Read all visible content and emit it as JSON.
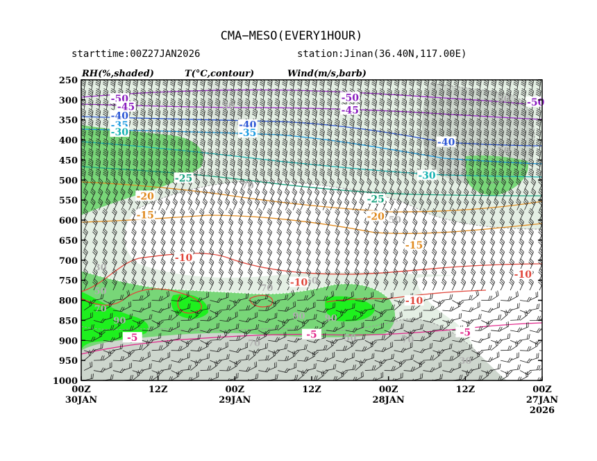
{
  "header": {
    "title": "CMA−MESO(EVERY1HOUR)",
    "start": "starttime:00Z27JAN2026",
    "station": "station:Jinan(36.40N,117.00E)"
  },
  "legend": {
    "rh": "RH(%,shaded)",
    "temp": "T(°C,contour)",
    "wind": "Wind(m/s,barb)"
  },
  "chart_data": {
    "type": "heatmap",
    "y_axis": {
      "ticks": [
        "250",
        "300",
        "350",
        "400",
        "450",
        "500",
        "550",
        "600",
        "650",
        "700",
        "750",
        "800",
        "850",
        "900",
        "950",
        "1000"
      ],
      "ylim": [
        250,
        1000
      ]
    },
    "x_axis": {
      "ticks": [
        {
          "top": "00Z",
          "bottom": "30JAN",
          "extra": ""
        },
        {
          "top": "12Z",
          "bottom": "",
          "extra": ""
        },
        {
          "top": "00Z",
          "bottom": "29JAN",
          "extra": ""
        },
        {
          "top": "12Z",
          "bottom": "",
          "extra": ""
        },
        {
          "top": "00Z",
          "bottom": "28JAN",
          "extra": ""
        },
        {
          "top": "12Z",
          "bottom": "",
          "extra": ""
        },
        {
          "top": "00Z",
          "bottom": "27JAN",
          "extra": "2026"
        }
      ]
    },
    "temperature_labels": [
      {
        "text": "-50",
        "x_hours": 66,
        "p": 297,
        "color": "#8a1dbf"
      },
      {
        "text": "-50",
        "x_hours": 30,
        "p": 294,
        "color": "#8a1dbf"
      },
      {
        "text": "-50",
        "x_hours": 1,
        "p": 305,
        "color": "#8a1dbf"
      },
      {
        "text": "-45",
        "x_hours": 65,
        "p": 317,
        "color": "#8a1dbf"
      },
      {
        "text": "-45",
        "x_hours": 30,
        "p": 325,
        "color": "#8a1dbf"
      },
      {
        "text": "-40",
        "x_hours": 66,
        "p": 339,
        "color": "#2a55d5"
      },
      {
        "text": "-40",
        "x_hours": 46,
        "p": 362,
        "color": "#2a55d5"
      },
      {
        "text": "-40",
        "x_hours": 15,
        "p": 405,
        "color": "#2a55d5"
      },
      {
        "text": "-35",
        "x_hours": 66,
        "p": 363,
        "color": "#1a9ae0"
      },
      {
        "text": "-35",
        "x_hours": 46,
        "p": 382,
        "color": "#1a9ae0"
      },
      {
        "text": "-30",
        "x_hours": 66,
        "p": 380,
        "color": "#16b2b2"
      },
      {
        "text": "-30",
        "x_hours": 18,
        "p": 488,
        "color": "#16b2b2"
      },
      {
        "text": "-25",
        "x_hours": 56,
        "p": 495,
        "color": "#17a17e"
      },
      {
        "text": "-25",
        "x_hours": 26,
        "p": 547,
        "color": "#17a17e"
      },
      {
        "text": "-20",
        "x_hours": 62,
        "p": 540,
        "color": "#e08a1e"
      },
      {
        "text": "-20",
        "x_hours": 26,
        "p": 590,
        "color": "#e08a1e"
      },
      {
        "text": "-15",
        "x_hours": 62,
        "p": 587,
        "color": "#e08a1e"
      },
      {
        "text": "-15",
        "x_hours": 20,
        "p": 662,
        "color": "#e08a1e"
      },
      {
        "text": "-10",
        "x_hours": 56,
        "p": 693,
        "color": "#e0453a"
      },
      {
        "text": "-10",
        "x_hours": 38,
        "p": 755,
        "color": "#e0453a"
      },
      {
        "text": "-10",
        "x_hours": 3,
        "p": 735,
        "color": "#e0453a"
      },
      {
        "text": "-10",
        "x_hours": 20,
        "p": 801,
        "color": "#e0453a"
      },
      {
        "text": "-5",
        "x_hours": 64,
        "p": 893,
        "color": "#e0258a"
      },
      {
        "text": "-5",
        "x_hours": 36,
        "p": 885,
        "color": "#e0258a"
      },
      {
        "text": "-5",
        "x_hours": 12,
        "p": 880,
        "color": "#e0258a"
      }
    ],
    "rh_labels": [
      {
        "text": "50",
        "x_hours": 6,
        "p": 297
      },
      {
        "text": "50",
        "x_hours": 49,
        "p": 312
      },
      {
        "text": "70",
        "x_hours": 6,
        "p": 425
      },
      {
        "text": "70",
        "x_hours": 46,
        "p": 512
      },
      {
        "text": "50",
        "x_hours": 23,
        "p": 598
      },
      {
        "text": "30",
        "x_hours": 69,
        "p": 717
      },
      {
        "text": "50",
        "x_hours": 36,
        "p": 750
      },
      {
        "text": "70",
        "x_hours": 43,
        "p": 768
      },
      {
        "text": "50",
        "x_hours": 69,
        "p": 776
      },
      {
        "text": "70",
        "x_hours": 69,
        "p": 820
      },
      {
        "text": "90",
        "x_hours": 66,
        "p": 849
      },
      {
        "text": "90",
        "x_hours": 33,
        "p": 843
      },
      {
        "text": "90",
        "x_hours": 38,
        "p": 838
      },
      {
        "text": "70",
        "x_hours": 21,
        "p": 897
      },
      {
        "text": "50",
        "x_hours": 30,
        "p": 893
      },
      {
        "text": "70",
        "x_hours": 45,
        "p": 906
      },
      {
        "text": "30",
        "x_hours": 12,
        "p": 950
      }
    ]
  },
  "colors": {
    "rh_light": "#e4f0e4",
    "rh_mid": "#cad3ca",
    "rh_green": "#74d674",
    "rh_bright": "#1ef01e",
    "frame": "#000000"
  }
}
